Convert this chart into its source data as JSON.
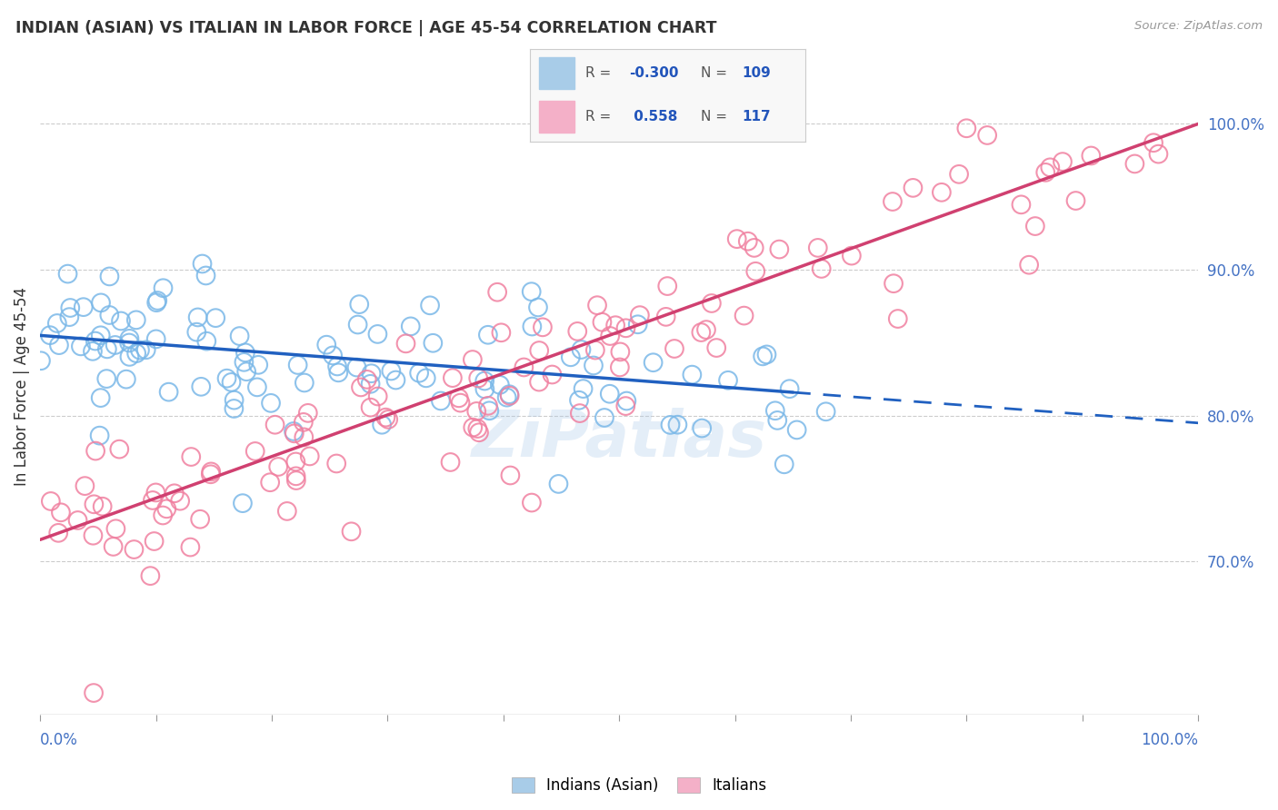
{
  "title": "INDIAN (ASIAN) VS ITALIAN IN LABOR FORCE | AGE 45-54 CORRELATION CHART",
  "source": "Source: ZipAtlas.com",
  "ylabel": "In Labor Force | Age 45-54",
  "watermark": "ZiPatlas",
  "blue_color": "#7ab8e8",
  "pink_color": "#f080a0",
  "blue_line_color": "#2060c0",
  "pink_line_color": "#d04070",
  "blue_line_solid_end": 0.65,
  "blue_intercept": 0.855,
  "blue_slope": -0.06,
  "pink_intercept": 0.715,
  "pink_slope": 0.285,
  "xmin": 0.0,
  "xmax": 1.0,
  "ymin": 0.595,
  "ymax": 1.045,
  "right_yticks": [
    0.7,
    0.8,
    0.9,
    1.0
  ],
  "right_yticklabels": [
    "70.0%",
    "80.0%",
    "90.0%",
    "100.0%"
  ],
  "legend_R_blue": "-0.300",
  "legend_N_blue": "109",
  "legend_R_pink": "0.558",
  "legend_N_pink": "117",
  "legend_color_blue": "#a8cce8",
  "legend_color_pink": "#f4b0c8",
  "bottom_label_blue": "Indians (Asian)",
  "bottom_label_pink": "Italians"
}
